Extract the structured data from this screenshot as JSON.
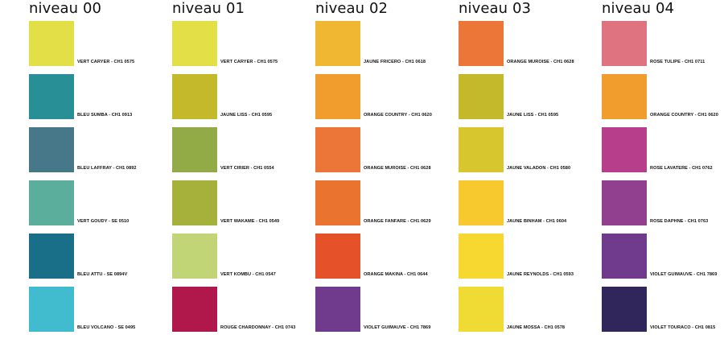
{
  "columns": [
    {
      "title": "niveau 00",
      "items": [
        {
          "label": "VERT CARYER - CH1 0575",
          "color": "#E2DF47"
        },
        {
          "label": "BLEU SUMBA - CH1 0913",
          "color": "#288F96"
        },
        {
          "label": "BLEU LAFFRAY - CH1 0892",
          "color": "#467889"
        },
        {
          "label": "VERT GOUDY - SE 0510",
          "color": "#5BAD9C"
        },
        {
          "label": "BLEU ATTU - SE 0894V",
          "color": "#196F88"
        },
        {
          "label": "BLEU VOLCANO - SE 0495",
          "color": "#41BCCF"
        }
      ]
    },
    {
      "title": "niveau 01",
      "items": [
        {
          "label": "VERT CARYER - CH1 0575",
          "color": "#E2DF47"
        },
        {
          "label": "JAUNE LISS - CH1 0595",
          "color": "#C3B92A"
        },
        {
          "label": "VERT CIRIER - CH1 0554",
          "color": "#93AB46"
        },
        {
          "label": "VERT WAKAME - CH1 0549",
          "color": "#A5B13A"
        },
        {
          "label": "VERT KOMBU - CH1 0547",
          "color": "#C1D577"
        },
        {
          "label": "ROUGE CHARDONNAY - CH1 0743",
          "color": "#B0184B"
        }
      ]
    },
    {
      "title": "niveau 02",
      "items": [
        {
          "label": "JAUNE FRICERO - CH1 0618",
          "color": "#F0B733"
        },
        {
          "label": "ORANGE COUNTRY - CH1 0620",
          "color": "#F19D2E"
        },
        {
          "label": "ORANGE MUROISE - CH1 0628",
          "color": "#EB7637"
        },
        {
          "label": "ORANGE FANFARE - CH1 0629",
          "color": "#EA7330"
        },
        {
          "label": "ORANGE MAKINA - CH1 0644",
          "color": "#E55128"
        },
        {
          "label": "VIOLET GUIMAUVE - CH1 7869",
          "color": "#713B8D"
        }
      ]
    },
    {
      "title": "niveau 03",
      "items": [
        {
          "label": "ORANGE MUROISE - CH1 0628",
          "color": "#EB7637"
        },
        {
          "label": "JAUNE LISS - CH1 0595",
          "color": "#C3B92A"
        },
        {
          "label": "JAUNE VALADON - CH1 0580",
          "color": "#D7C62E"
        },
        {
          "label": "JAUNE BINHAM - CH1 0604",
          "color": "#F7C92F"
        },
        {
          "label": "JAUNE REYNOLDS - CH1 0593",
          "color": "#F7D830"
        },
        {
          "label": "JAUNE MOSSA - CH1 0578",
          "color": "#EFDB34"
        }
      ]
    },
    {
      "title": "niveau 04",
      "items": [
        {
          "label": "ROSE TULIPE - CH1 0711",
          "color": "#E07380"
        },
        {
          "label": "ORANGE COUNTRY - CH1 0620",
          "color": "#F19D2E"
        },
        {
          "label": "ROSE LAVATERE - CH1 0762",
          "color": "#B73E8A"
        },
        {
          "label": "ROSE DAPHNE - CH1 0763",
          "color": "#913F8F"
        },
        {
          "label": "VIOLET GUIMAUVE - CH1 7869",
          "color": "#713B8D"
        },
        {
          "label": "VIOLET TOURACO - CH1 0815",
          "color": "#31265B"
        }
      ]
    }
  ]
}
